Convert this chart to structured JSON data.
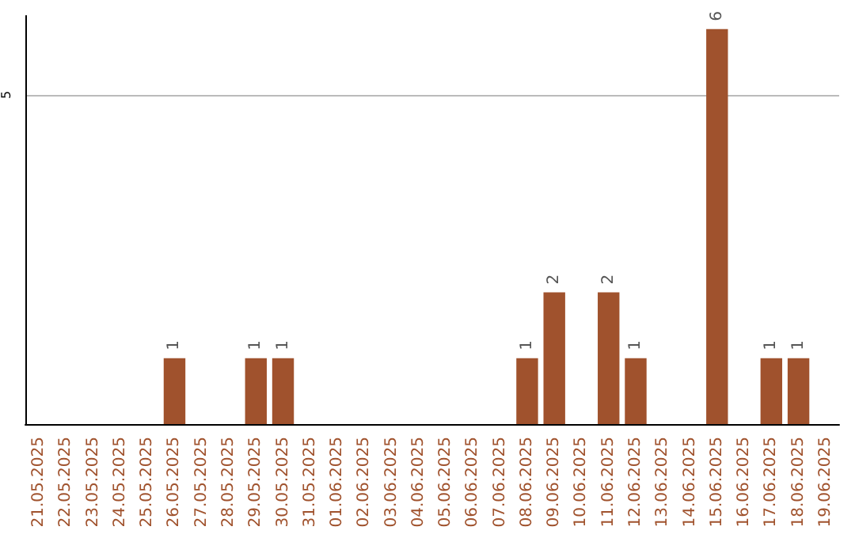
{
  "chart_data": {
    "type": "bar",
    "categories": [
      "21.05.2025",
      "22.05.2025",
      "23.05.2025",
      "24.05.2025",
      "25.05.2025",
      "26.05.2025",
      "27.05.2025",
      "28.05.2025",
      "29.05.2025",
      "30.05.2025",
      "31.05.2025",
      "01.06.2025",
      "02.06.2025",
      "03.06.2025",
      "04.06.2025",
      "05.06.2025",
      "06.06.2025",
      "07.06.2025",
      "08.06.2025",
      "09.06.2025",
      "10.06.2025",
      "11.06.2025",
      "12.06.2025",
      "13.06.2025",
      "14.06.2025",
      "15.06.2025",
      "16.06.2025",
      "17.06.2025",
      "18.06.2025",
      "19.06.2025"
    ],
    "values": [
      0,
      0,
      0,
      0,
      0,
      1,
      0,
      0,
      1,
      1,
      0,
      0,
      0,
      0,
      0,
      0,
      0,
      0,
      1,
      2,
      0,
      2,
      1,
      0,
      0,
      6,
      0,
      1,
      1,
      0
    ],
    "value_labels": [
      null,
      null,
      null,
      null,
      null,
      "1",
      null,
      null,
      "1",
      "1",
      null,
      null,
      null,
      null,
      null,
      null,
      null,
      null,
      "1",
      "2",
      null,
      "2",
      "1",
      null,
      null,
      "6",
      null,
      "1",
      "1",
      null
    ],
    "color": "#a0522d",
    "ylim": [
      0,
      6.2
    ],
    "yticks": [
      5
    ],
    "grid": "y"
  }
}
